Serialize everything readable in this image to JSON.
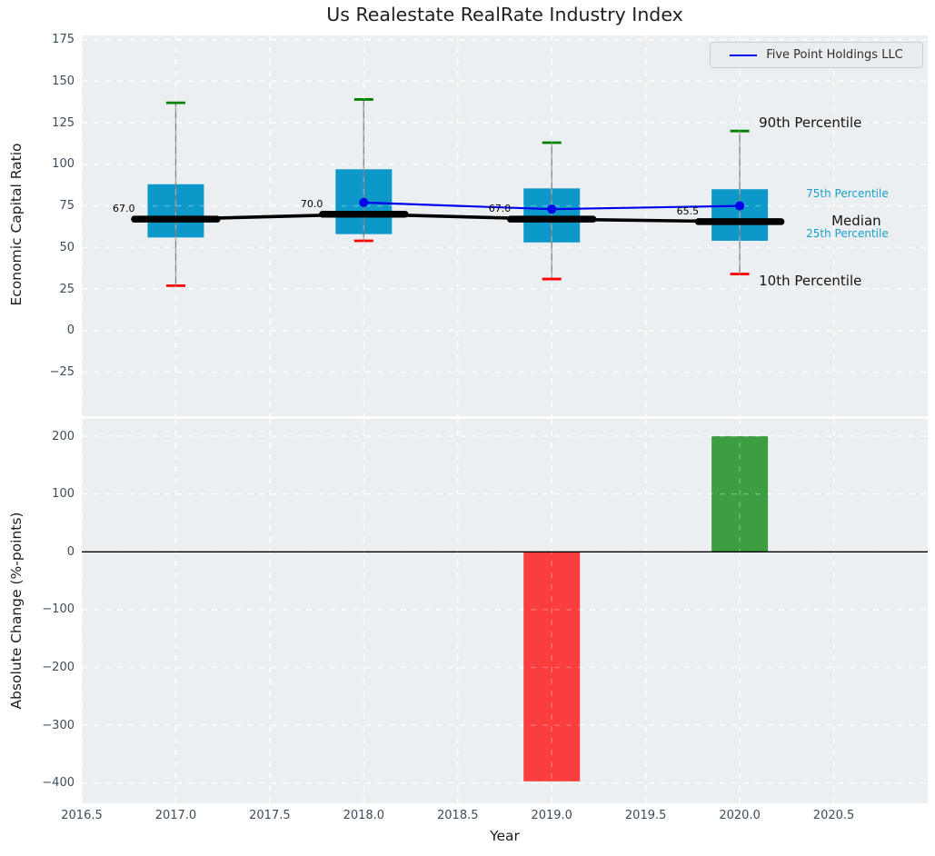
{
  "title": "Us Realestate RealRate Industry Index",
  "legend": {
    "label": "Five Point Holdings LLC"
  },
  "colors": {
    "background": "#ffffff",
    "axes_background": "#eceff1",
    "grid": "#ffffff",
    "tick_label": "#3d4c5a",
    "box_fill": "#0d98ca",
    "whisker": "#808080",
    "cap_high": "#008000",
    "cap_low": "#ff0000",
    "median": "#000000",
    "company_line": "#0000ee",
    "bar_negative": "#fa3d3d",
    "bar_positive": "#3d9e41",
    "percentile_cyan": "#1a9fca",
    "percentile_black": "#151515",
    "zero_line": "#000000"
  },
  "chart_data": [
    {
      "type": "boxplot",
      "title": "Us Realestate RealRate Industry Index",
      "ylabel": "Economic Capital Ratio",
      "xlabel": "",
      "ylim": [
        -51.5,
        177.5
      ],
      "yticks": [
        175,
        150,
        125,
        100,
        75,
        50,
        25,
        0,
        -25
      ],
      "xlim": [
        2016.5,
        2021.0
      ],
      "xticks": [
        2016.5,
        2017.0,
        2017.5,
        2018.0,
        2018.5,
        2019.0,
        2019.5,
        2020.0,
        2020.5
      ],
      "grid": true,
      "legend_position": "upper right",
      "categories": [
        2017,
        2018,
        2019,
        2020
      ],
      "boxes": [
        {
          "year": 2017,
          "p10": 27,
          "p25": 56,
          "median": 67,
          "p75": 88,
          "p90": 137,
          "label": "67.0"
        },
        {
          "year": 2018,
          "p10": 54,
          "p25": 58,
          "median": 70,
          "p75": 97,
          "p90": 139,
          "label": "70.0"
        },
        {
          "year": 2019,
          "p10": 31,
          "p25": 53,
          "median": 67,
          "p75": 85.5,
          "p90": 113,
          "label": "67.0"
        },
        {
          "year": 2020,
          "p10": 34,
          "p25": 54,
          "median": 65.5,
          "p75": 85,
          "p90": 120,
          "label": "65.5"
        }
      ],
      "series": [
        {
          "name": "Five Point Holdings LLC",
          "x": [
            2018,
            2019,
            2020
          ],
          "values": [
            77,
            73,
            75
          ]
        }
      ],
      "percentile_labels": [
        {
          "text": "90th Percentile",
          "value": 125,
          "style": "black",
          "x_offset": 21
        },
        {
          "text": "75th Percentile",
          "value": 82,
          "style": "cyan",
          "x_offset": 73
        },
        {
          "text": "Median",
          "value": 66,
          "style": "black",
          "x_offset": 101
        },
        {
          "text": "25th Percentile",
          "value": 58,
          "style": "cyan",
          "x_offset": 73
        },
        {
          "text": "10th Percentile",
          "value": 29.5,
          "style": "black",
          "x_offset": 21
        }
      ]
    },
    {
      "type": "bar",
      "ylabel": "Absolute Change (%-points)",
      "xlabel": "Year",
      "ylim": [
        -435,
        230
      ],
      "yticks": [
        200,
        100,
        0,
        -100,
        -200,
        -300,
        -400
      ],
      "xlim": [
        2016.5,
        2021.0
      ],
      "xticks": [
        2016.5,
        2017.0,
        2017.5,
        2018.0,
        2018.5,
        2019.0,
        2019.5,
        2020.0,
        2020.5
      ],
      "grid": true,
      "categories": [
        2019,
        2020
      ],
      "values": [
        -397,
        200
      ],
      "bars": [
        {
          "year": 2019,
          "value": -397,
          "color_key": "bar_negative"
        },
        {
          "year": 2020,
          "value": 200,
          "color_key": "bar_positive"
        }
      ]
    }
  ]
}
